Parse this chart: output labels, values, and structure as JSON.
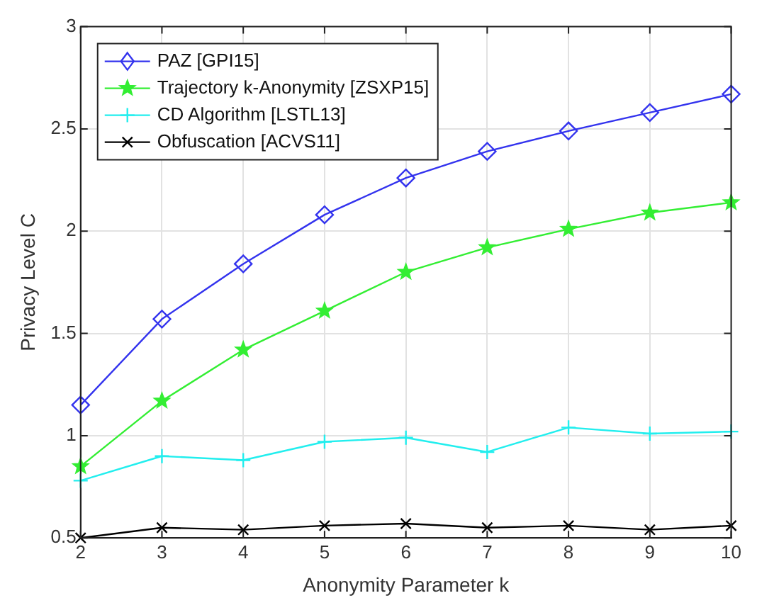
{
  "chart_data": {
    "type": "line",
    "xlabel": "Anonymity Parameter k",
    "ylabel": "Privacy Level C",
    "x": [
      2,
      3,
      4,
      5,
      6,
      7,
      8,
      9,
      10
    ],
    "series": [
      {
        "name": "PAZ [GPI15]",
        "color": "#3333ee",
        "marker": "diamond",
        "values": [
          1.15,
          1.57,
          1.84,
          2.08,
          2.26,
          2.39,
          2.49,
          2.58,
          2.67
        ]
      },
      {
        "name": "Trajectory k-Anonymity [ZSXP15]",
        "color": "#33ee33",
        "marker": "star",
        "values": [
          0.85,
          1.17,
          1.42,
          1.61,
          1.8,
          1.92,
          2.01,
          2.09,
          2.14
        ]
      },
      {
        "name": "CD Algorithm [LSTL13]",
        "color": "#22eeee",
        "marker": "cross",
        "values": [
          0.78,
          0.9,
          0.88,
          0.97,
          0.99,
          0.92,
          1.04,
          1.01,
          1.02
        ]
      },
      {
        "name": "Obfuscation [ACVS11]",
        "color": "#000000",
        "marker": "x",
        "values": [
          0.5,
          0.55,
          0.54,
          0.56,
          0.57,
          0.55,
          0.56,
          0.54,
          0.56
        ]
      }
    ],
    "xlim": [
      2,
      10
    ],
    "xticks": [
      2,
      3,
      4,
      5,
      6,
      7,
      8,
      9,
      10
    ],
    "ylim": [
      0.5,
      3
    ],
    "yticks": [
      0.5,
      1,
      1.5,
      2,
      2.5,
      3
    ],
    "grid": true,
    "legend": "top left",
    "line_style": "solid"
  }
}
